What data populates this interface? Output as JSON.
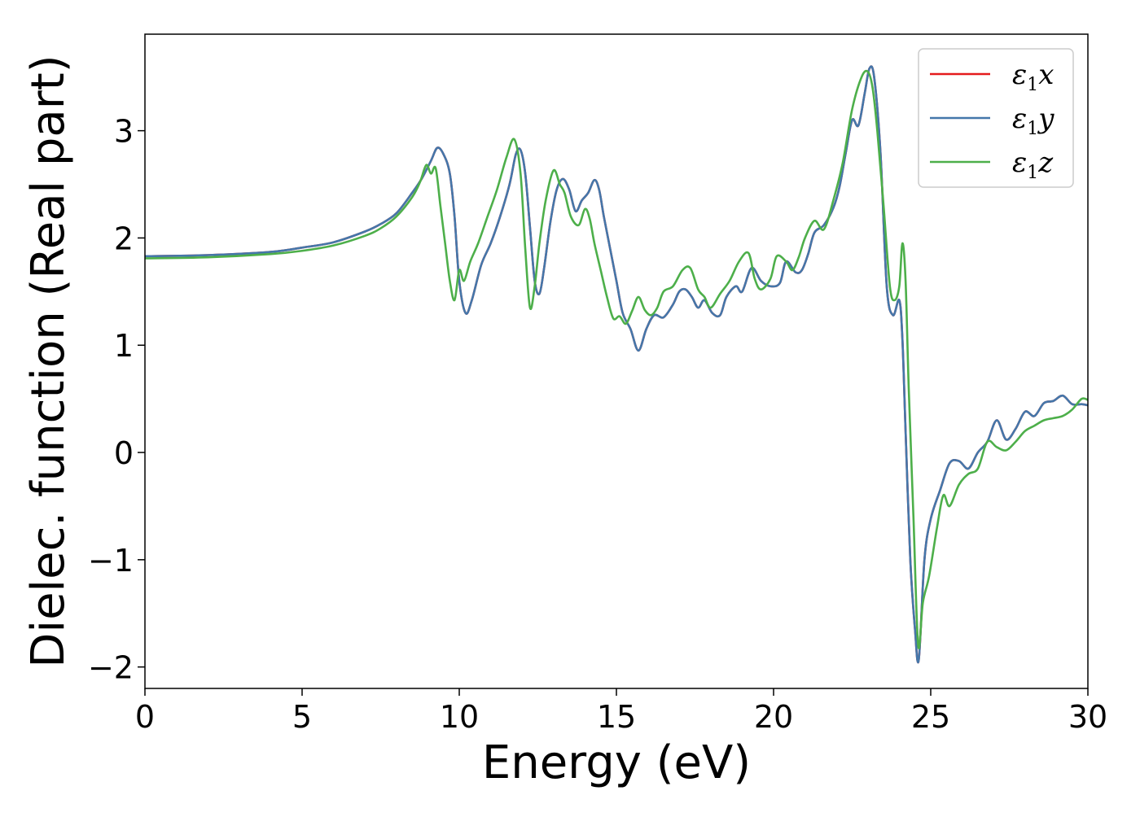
{
  "colors": {
    "eps_x": "#e41a1c",
    "eps_y": "#4477aa",
    "eps_z": "#4daf4a",
    "axes": "#000000",
    "legend_border": "#cccccc"
  },
  "chart_data": {
    "type": "line",
    "title": "",
    "xlabel": "Energy (eV)",
    "ylabel": "Dielec. function (Real part)",
    "xlim": [
      0,
      30
    ],
    "ylim": [
      -2.2,
      3.9
    ],
    "xticks": [
      0,
      5,
      10,
      15,
      20,
      25,
      30
    ],
    "xtick_labels": [
      "0",
      "5",
      "10",
      "15",
      "20",
      "25",
      "30"
    ],
    "yticks": [
      -2,
      -1,
      0,
      1,
      2,
      3
    ],
    "ytick_labels": [
      "−2",
      "−1",
      "0",
      "1",
      "2",
      "3"
    ],
    "grid": false,
    "legend_position": "top-right",
    "legend": [
      {
        "symbol": "ε",
        "sub": "1",
        "axis": "x",
        "color_key": "eps_x"
      },
      {
        "symbol": "ε",
        "sub": "1",
        "axis": "y",
        "color_key": "eps_y"
      },
      {
        "symbol": "ε",
        "sub": "1",
        "axis": "z",
        "color_key": "eps_z"
      }
    ],
    "series": [
      {
        "name": "ε1x",
        "color_key": "eps_x",
        "x": [
          0,
          2,
          4,
          5,
          6,
          7,
          7.5,
          8,
          8.5,
          8.8,
          9.1,
          9.3,
          9.5,
          9.7,
          9.85,
          10,
          10.2,
          10.4,
          10.7,
          11.0,
          11.3,
          11.6,
          11.8,
          11.95,
          12.1,
          12.25,
          12.4,
          12.55,
          12.7,
          12.9,
          13.1,
          13.3,
          13.5,
          13.7,
          13.9,
          14.1,
          14.3,
          14.45,
          14.6,
          14.8,
          15.0,
          15.2,
          15.45,
          15.7,
          15.95,
          16.2,
          16.5,
          16.8,
          17.0,
          17.2,
          17.4,
          17.6,
          17.8,
          18.05,
          18.3,
          18.5,
          18.8,
          19.0,
          19.3,
          19.6,
          19.9,
          20.2,
          20.4,
          20.7,
          20.9,
          21.1,
          21.3,
          21.6,
          21.9,
          22.1,
          22.3,
          22.5,
          22.7,
          22.9,
          23.05,
          23.2,
          23.4,
          23.6,
          23.8,
          24.0,
          24.1,
          24.2,
          24.35,
          24.5,
          24.62,
          24.8,
          25.0,
          25.3,
          25.6,
          25.9,
          26.2,
          26.5,
          26.8,
          27.1,
          27.4,
          27.7,
          28.0,
          28.3,
          28.6,
          28.9,
          29.2,
          29.5,
          29.8,
          30
        ],
        "y": [
          1.83,
          1.84,
          1.87,
          1.91,
          1.96,
          2.06,
          2.13,
          2.23,
          2.42,
          2.55,
          2.72,
          2.84,
          2.78,
          2.6,
          2.2,
          1.6,
          1.3,
          1.42,
          1.75,
          1.95,
          2.2,
          2.5,
          2.78,
          2.82,
          2.6,
          2.1,
          1.6,
          1.48,
          1.72,
          2.15,
          2.45,
          2.55,
          2.45,
          2.25,
          2.35,
          2.42,
          2.54,
          2.45,
          2.2,
          1.9,
          1.6,
          1.3,
          1.15,
          0.95,
          1.15,
          1.28,
          1.26,
          1.38,
          1.5,
          1.52,
          1.45,
          1.35,
          1.42,
          1.3,
          1.28,
          1.45,
          1.55,
          1.5,
          1.72,
          1.6,
          1.55,
          1.58,
          1.78,
          1.68,
          1.7,
          1.85,
          2.05,
          2.12,
          2.28,
          2.48,
          2.8,
          3.1,
          3.05,
          3.35,
          3.58,
          3.5,
          2.8,
          1.55,
          1.28,
          1.42,
          1.05,
          0.2,
          -1.0,
          -1.65,
          -1.93,
          -1.0,
          -0.62,
          -0.35,
          -0.1,
          -0.08,
          -0.15,
          0.0,
          0.1,
          0.3,
          0.12,
          0.22,
          0.38,
          0.34,
          0.46,
          0.48,
          0.53,
          0.45,
          0.45,
          0.44
        ]
      },
      {
        "name": "ε1y",
        "color_key": "eps_y",
        "x": [
          0,
          2,
          4,
          5,
          6,
          7,
          7.5,
          8,
          8.5,
          8.8,
          9.1,
          9.3,
          9.5,
          9.7,
          9.85,
          10,
          10.2,
          10.4,
          10.7,
          11.0,
          11.3,
          11.6,
          11.8,
          11.95,
          12.1,
          12.25,
          12.4,
          12.55,
          12.7,
          12.9,
          13.1,
          13.3,
          13.5,
          13.7,
          13.9,
          14.1,
          14.3,
          14.45,
          14.6,
          14.8,
          15.0,
          15.2,
          15.45,
          15.7,
          15.95,
          16.2,
          16.5,
          16.8,
          17.0,
          17.2,
          17.4,
          17.6,
          17.8,
          18.05,
          18.3,
          18.5,
          18.8,
          19.0,
          19.3,
          19.6,
          19.9,
          20.2,
          20.4,
          20.7,
          20.9,
          21.1,
          21.3,
          21.6,
          21.9,
          22.1,
          22.3,
          22.5,
          22.7,
          22.9,
          23.05,
          23.2,
          23.4,
          23.6,
          23.8,
          24.0,
          24.1,
          24.2,
          24.35,
          24.5,
          24.62,
          24.8,
          25.0,
          25.3,
          25.6,
          25.9,
          26.2,
          26.5,
          26.8,
          27.1,
          27.4,
          27.7,
          28.0,
          28.3,
          28.6,
          28.9,
          29.2,
          29.5,
          29.8,
          30
        ],
        "y": [
          1.83,
          1.84,
          1.87,
          1.91,
          1.96,
          2.06,
          2.13,
          2.23,
          2.42,
          2.55,
          2.72,
          2.84,
          2.78,
          2.6,
          2.2,
          1.6,
          1.3,
          1.42,
          1.75,
          1.95,
          2.2,
          2.5,
          2.78,
          2.82,
          2.6,
          2.1,
          1.6,
          1.48,
          1.72,
          2.15,
          2.45,
          2.55,
          2.45,
          2.25,
          2.35,
          2.42,
          2.54,
          2.45,
          2.2,
          1.9,
          1.6,
          1.3,
          1.15,
          0.95,
          1.15,
          1.28,
          1.26,
          1.38,
          1.5,
          1.52,
          1.45,
          1.35,
          1.42,
          1.3,
          1.28,
          1.45,
          1.55,
          1.5,
          1.72,
          1.6,
          1.55,
          1.58,
          1.78,
          1.68,
          1.7,
          1.85,
          2.05,
          2.12,
          2.28,
          2.48,
          2.8,
          3.1,
          3.05,
          3.35,
          3.58,
          3.5,
          2.8,
          1.55,
          1.28,
          1.42,
          1.05,
          0.2,
          -1.0,
          -1.65,
          -1.93,
          -1.0,
          -0.62,
          -0.35,
          -0.1,
          -0.08,
          -0.15,
          0.0,
          0.1,
          0.3,
          0.12,
          0.22,
          0.38,
          0.34,
          0.46,
          0.48,
          0.53,
          0.45,
          0.45,
          0.44
        ]
      },
      {
        "name": "ε1z",
        "color_key": "eps_z",
        "x": [
          0,
          2,
          4,
          5,
          6,
          7,
          7.5,
          8,
          8.5,
          8.75,
          8.95,
          9.1,
          9.25,
          9.4,
          9.55,
          9.7,
          9.85,
          10.0,
          10.15,
          10.35,
          10.6,
          10.9,
          11.2,
          11.5,
          11.75,
          11.95,
          12.1,
          12.25,
          12.4,
          12.55,
          12.75,
          13.0,
          13.2,
          13.35,
          13.55,
          13.8,
          14.0,
          14.15,
          14.3,
          14.5,
          14.7,
          14.9,
          15.1,
          15.3,
          15.5,
          15.7,
          15.9,
          16.1,
          16.3,
          16.5,
          16.8,
          17.1,
          17.35,
          17.6,
          17.8,
          18.0,
          18.3,
          18.6,
          18.9,
          19.2,
          19.4,
          19.6,
          19.9,
          20.1,
          20.4,
          20.6,
          20.8,
          21.0,
          21.3,
          21.6,
          21.9,
          22.2,
          22.5,
          22.8,
          23.0,
          23.15,
          23.3,
          23.5,
          23.7,
          23.85,
          24.0,
          24.1,
          24.2,
          24.3,
          24.45,
          24.6,
          24.75,
          24.95,
          25.2,
          25.4,
          25.6,
          25.9,
          26.2,
          26.5,
          26.8,
          27.1,
          27.4,
          27.7,
          28.0,
          28.3,
          28.6,
          28.9,
          29.2,
          29.5,
          29.8,
          30
        ],
        "y": [
          1.81,
          1.82,
          1.85,
          1.88,
          1.93,
          2.02,
          2.09,
          2.2,
          2.38,
          2.52,
          2.68,
          2.6,
          2.65,
          2.3,
          1.95,
          1.6,
          1.42,
          1.7,
          1.6,
          1.78,
          1.95,
          2.2,
          2.45,
          2.75,
          2.92,
          2.6,
          1.9,
          1.35,
          1.55,
          1.95,
          2.35,
          2.63,
          2.5,
          2.42,
          2.2,
          2.12,
          2.27,
          2.18,
          1.95,
          1.7,
          1.45,
          1.25,
          1.27,
          1.2,
          1.32,
          1.45,
          1.33,
          1.28,
          1.35,
          1.5,
          1.55,
          1.7,
          1.72,
          1.52,
          1.45,
          1.35,
          1.48,
          1.6,
          1.78,
          1.86,
          1.62,
          1.52,
          1.62,
          1.83,
          1.78,
          1.7,
          1.82,
          2.0,
          2.16,
          2.08,
          2.35,
          2.7,
          3.2,
          3.5,
          3.55,
          3.4,
          3.0,
          2.3,
          1.55,
          1.42,
          1.55,
          1.95,
          1.6,
          0.6,
          -0.6,
          -1.8,
          -1.4,
          -1.15,
          -0.7,
          -0.4,
          -0.5,
          -0.3,
          -0.2,
          -0.15,
          0.1,
          0.05,
          0.02,
          0.1,
          0.2,
          0.25,
          0.3,
          0.32,
          0.34,
          0.4,
          0.5,
          0.49
        ]
      }
    ]
  }
}
